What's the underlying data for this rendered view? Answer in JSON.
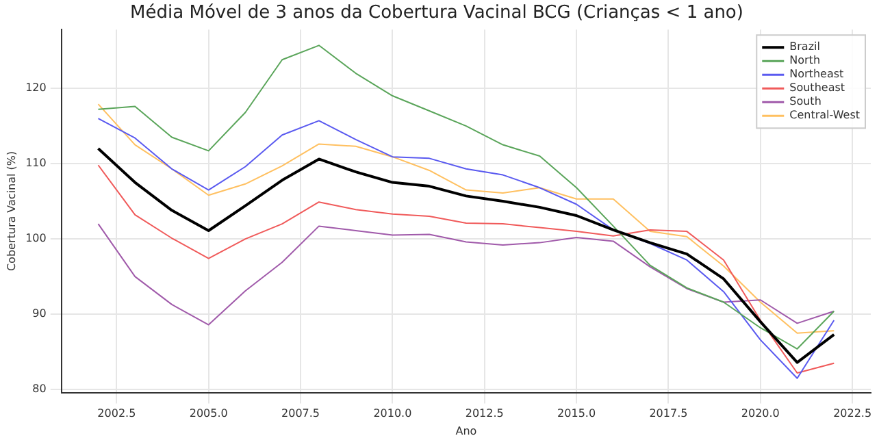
{
  "chart_data": {
    "type": "line",
    "title": "Média Móvel de 3 anos da Cobertura Vacinal BCG (Crianças < 1 ano)",
    "xlabel": "Ano",
    "ylabel": "Cobertura Vacinal (%)",
    "x": [
      2002,
      2003,
      2004,
      2005,
      2006,
      2007,
      2008,
      2009,
      2010,
      2011,
      2012,
      2013,
      2014,
      2015,
      2016,
      2017,
      2018,
      2019,
      2020,
      2021,
      2022
    ],
    "series": [
      {
        "name": "Brazil",
        "color": "#000000",
        "values": [
          112,
          107.5,
          103.8,
          101.1,
          104.4,
          107.8,
          110.6,
          108.9,
          107.5,
          107,
          105.7,
          105,
          104.2,
          103.1,
          101.2,
          99.5,
          98,
          94.7,
          89,
          83.6,
          87.3
        ]
      },
      {
        "name": "North",
        "color": "#5aa55a",
        "values": [
          117.2,
          117.6,
          113.5,
          111.7,
          116.8,
          123.8,
          125.7,
          122,
          119,
          117,
          115,
          112.5,
          111,
          106.8,
          101.7,
          96.5,
          93.5,
          91.6,
          88.2,
          85.4,
          90.4
        ]
      },
      {
        "name": "Northeast",
        "color": "#5a5af0",
        "values": [
          116,
          113.4,
          109.3,
          106.5,
          109.6,
          113.8,
          115.7,
          113.2,
          110.9,
          110.7,
          109.3,
          108.5,
          106.8,
          104.6,
          101.2,
          99.4,
          97.2,
          93,
          86.6,
          81.5,
          89.2
        ]
      },
      {
        "name": "Southeast",
        "color": "#f05a5a",
        "values": [
          109.8,
          103.2,
          100.1,
          97.4,
          100,
          102,
          104.9,
          103.9,
          103.3,
          103,
          102.1,
          102,
          101.5,
          101,
          100.4,
          101.2,
          101,
          97.2,
          89.2,
          82.2,
          83.5
        ]
      },
      {
        "name": "South",
        "color": "#a05aaa",
        "values": [
          102,
          95,
          91.3,
          88.6,
          93.1,
          96.9,
          101.7,
          101.1,
          100.5,
          100.6,
          99.6,
          99.2,
          99.5,
          100.2,
          99.7,
          96.3,
          93.4,
          91.6,
          91.9,
          88.8,
          90.4
        ]
      },
      {
        "name": "Central-West",
        "color": "#ffc060",
        "values": [
          117.9,
          112.5,
          109.3,
          105.8,
          107.3,
          109.7,
          112.6,
          112.3,
          110.9,
          109.1,
          106.5,
          106.1,
          106.8,
          105.3,
          105.3,
          101,
          100.3,
          96.4,
          91.6,
          87.5,
          87.8
        ]
      }
    ],
    "xlim": [
      2001,
      2023
    ],
    "xticks": [
      {
        "value": 2002.5,
        "label": "2002.5"
      },
      {
        "value": 2005,
        "label": "2005.0"
      },
      {
        "value": 2007.5,
        "label": "2007.5"
      },
      {
        "value": 2010,
        "label": "2010.0"
      },
      {
        "value": 2012.5,
        "label": "2012.5"
      },
      {
        "value": 2015,
        "label": "2015.0"
      },
      {
        "value": 2017.5,
        "label": "2017.5"
      },
      {
        "value": 2020,
        "label": "2020.0"
      },
      {
        "value": 2022.5,
        "label": "2022.5"
      }
    ],
    "ylim": [
      79.6,
      127.8
    ],
    "yticks": [
      80,
      90,
      100,
      110,
      120
    ],
    "grid": true,
    "legend": "top right",
    "marker": "none",
    "line_style": "solid"
  }
}
